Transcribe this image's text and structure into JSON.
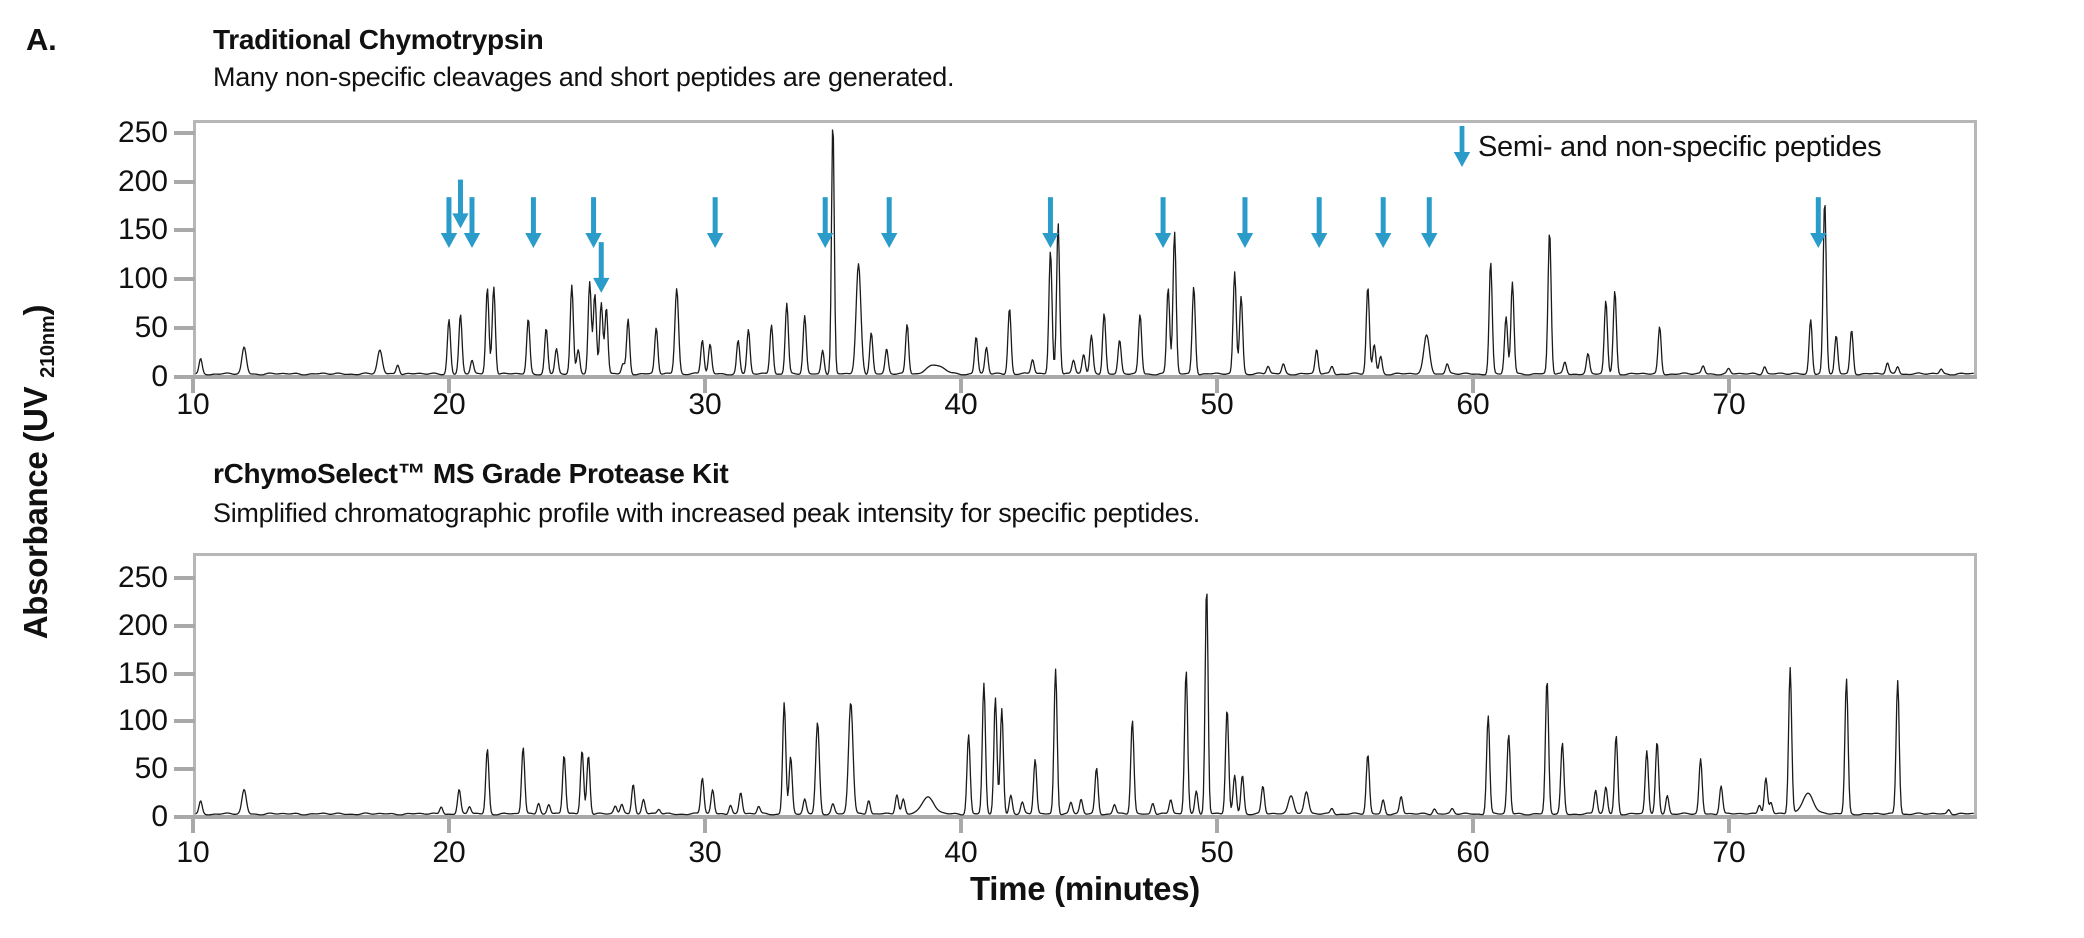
{
  "panel_label": "A.",
  "colors": {
    "arrow_blue": "#2B9CC9",
    "axis_gray": "#A9A9A9",
    "border_gray": "#B7B7B7",
    "trace_black": "#1B1B1B",
    "text_black": "#111111"
  },
  "shared_axes": {
    "x_label": "Time (minutes)",
    "y_label_main": "Absorbance (UV",
    "y_label_sub": "210nm",
    "y_label_close": ")",
    "x_ticks": [
      10,
      20,
      30,
      40,
      50,
      60,
      70
    ],
    "y_ticks": [
      250,
      200,
      150,
      100,
      50,
      0
    ],
    "x_range_minutes": [
      10,
      79.7
    ]
  },
  "chart_data": [
    {
      "type": "line",
      "id": "traditional-chymotrypsin",
      "title": "Traditional Chymotrypsin",
      "subtitle": "Many non-specific cleavages and short peptides are generated.",
      "legend": "Semi- and non-specific peptides",
      "xlabel": "Time (minutes)",
      "ylabel": "Absorbance (UV 210nm)",
      "xlim": [
        10,
        79.7
      ],
      "ylim": [
        0,
        262
      ],
      "x_ticks": [
        10,
        20,
        30,
        40,
        50,
        60,
        70
      ],
      "y_ticks": [
        250,
        200,
        150,
        100,
        50,
        0
      ],
      "grid": false,
      "peaks_time_height_width": [
        [
          10.3,
          15
        ],
        [
          12,
          27,
          0.12
        ],
        [
          17.3,
          24,
          0.13
        ],
        [
          18,
          10
        ],
        [
          20,
          56
        ],
        [
          20.45,
          60
        ],
        [
          20.9,
          14
        ],
        [
          21.5,
          88
        ],
        [
          21.75,
          90
        ],
        [
          23.1,
          56
        ],
        [
          23.8,
          47
        ],
        [
          24.2,
          25
        ],
        [
          24.8,
          90
        ],
        [
          25.05,
          25
        ],
        [
          25.5,
          95
        ],
        [
          25.7,
          82
        ],
        [
          25.95,
          72
        ],
        [
          26.15,
          68
        ],
        [
          26.8,
          10
        ],
        [
          27,
          56
        ],
        [
          28.1,
          47
        ],
        [
          28.9,
          88,
          0.1
        ],
        [
          29.9,
          35
        ],
        [
          30.2,
          30
        ],
        [
          31.3,
          34
        ],
        [
          31.7,
          45
        ],
        [
          32.6,
          51
        ],
        [
          33.2,
          72
        ],
        [
          33.9,
          59
        ],
        [
          34.6,
          25
        ],
        [
          35,
          259,
          0.075
        ],
        [
          36,
          112,
          0.13
        ],
        [
          36.5,
          43
        ],
        [
          37.1,
          25
        ],
        [
          37.9,
          51
        ],
        [
          39,
          9,
          0.45
        ],
        [
          40.6,
          38
        ],
        [
          41,
          27
        ],
        [
          41.9,
          68
        ],
        [
          42.8,
          15
        ],
        [
          43.5,
          126
        ],
        [
          43.8,
          155
        ],
        [
          44.4,
          14
        ],
        [
          44.8,
          20
        ],
        [
          45.1,
          39
        ],
        [
          45.6,
          63
        ],
        [
          46.2,
          34
        ],
        [
          47,
          61
        ],
        [
          48.1,
          88
        ],
        [
          48.35,
          145
        ],
        [
          49.1,
          90
        ],
        [
          50.7,
          104
        ],
        [
          50.95,
          80
        ],
        [
          52,
          8
        ],
        [
          52.6,
          10
        ],
        [
          53.9,
          25
        ],
        [
          54.5,
          8
        ],
        [
          55.9,
          89
        ],
        [
          56.15,
          30
        ],
        [
          56.4,
          18
        ],
        [
          58.2,
          40,
          0.16
        ],
        [
          59,
          10
        ],
        [
          60.7,
          114
        ],
        [
          61.3,
          58
        ],
        [
          61.55,
          94
        ],
        [
          63,
          146
        ],
        [
          63.6,
          12
        ],
        [
          64.5,
          20
        ],
        [
          65.2,
          75
        ],
        [
          65.55,
          85
        ],
        [
          67.3,
          48
        ],
        [
          69,
          8
        ],
        [
          70,
          5
        ],
        [
          71.4,
          8
        ],
        [
          73.2,
          56
        ],
        [
          73.75,
          177
        ],
        [
          74.2,
          39
        ],
        [
          74.8,
          45
        ],
        [
          76.2,
          11
        ],
        [
          76.6,
          8
        ],
        [
          78.3,
          5
        ]
      ],
      "annotation_arrows_time_tip_tail": [
        [
          20.0,
          130,
          182
        ],
        [
          20.45,
          150,
          200
        ],
        [
          20.9,
          130,
          182
        ],
        [
          23.3,
          130,
          182
        ],
        [
          25.65,
          130,
          182
        ],
        [
          25.95,
          84,
          136
        ],
        [
          30.4,
          130,
          182
        ],
        [
          34.7,
          130,
          182
        ],
        [
          37.2,
          130,
          182
        ],
        [
          43.5,
          130,
          182
        ],
        [
          47.9,
          130,
          182
        ],
        [
          51.1,
          130,
          182
        ],
        [
          54.0,
          130,
          182
        ],
        [
          56.5,
          130,
          182
        ],
        [
          58.3,
          130,
          182
        ],
        [
          73.5,
          130,
          182
        ]
      ]
    },
    {
      "type": "line",
      "id": "rchymoselect-ms-grade",
      "title": "rChymoSelect™ MS Grade Protease Kit",
      "subtitle": "Simplified chromatographic profile with increased peak intensity for specific peptides.",
      "legend": "",
      "xlabel": "Time (minutes)",
      "ylabel": "Absorbance (UV 210nm)",
      "xlim": [
        10,
        79.7
      ],
      "ylim": [
        0,
        274
      ],
      "x_ticks": [
        10,
        20,
        30,
        40,
        50,
        60,
        70
      ],
      "y_ticks": [
        250,
        200,
        150,
        100,
        50,
        0
      ],
      "grid": false,
      "peaks_time_height_width": [
        [
          10.3,
          13
        ],
        [
          12,
          25,
          0.12
        ],
        [
          19.7,
          8
        ],
        [
          20.4,
          25
        ],
        [
          20.8,
          8
        ],
        [
          21.5,
          68
        ],
        [
          22.9,
          70
        ],
        [
          23.5,
          12
        ],
        [
          23.9,
          10
        ],
        [
          24.5,
          62
        ],
        [
          25.2,
          67
        ],
        [
          25.45,
          62
        ],
        [
          26.5,
          8
        ],
        [
          26.75,
          10
        ],
        [
          27.2,
          32
        ],
        [
          27.6,
          15
        ],
        [
          28.2,
          5
        ],
        [
          29.9,
          38
        ],
        [
          30.3,
          25
        ],
        [
          31,
          10
        ],
        [
          31.4,
          22
        ],
        [
          32.1,
          8
        ],
        [
          33.1,
          117
        ],
        [
          33.35,
          59
        ],
        [
          33.9,
          15
        ],
        [
          34.4,
          96,
          0.1
        ],
        [
          35,
          10
        ],
        [
          35.7,
          117,
          0.12
        ],
        [
          36.4,
          15
        ],
        [
          37.5,
          20
        ],
        [
          37.75,
          15
        ],
        [
          38.7,
          17,
          0.35
        ],
        [
          40.3,
          83
        ],
        [
          40.9,
          136
        ],
        [
          41.35,
          121
        ],
        [
          41.6,
          110
        ],
        [
          41.95,
          20
        ],
        [
          42.4,
          12
        ],
        [
          42.9,
          57
        ],
        [
          43.7,
          152
        ],
        [
          44.3,
          12
        ],
        [
          44.7,
          15
        ],
        [
          45.3,
          48
        ],
        [
          46,
          10
        ],
        [
          46.7,
          98
        ],
        [
          47.5,
          12
        ],
        [
          48.2,
          15
        ],
        [
          48.8,
          150
        ],
        [
          49.2,
          25
        ],
        [
          49.6,
          238,
          0.08
        ],
        [
          50.4,
          110
        ],
        [
          50.7,
          40
        ],
        [
          51,
          41
        ],
        [
          51.8,
          29
        ],
        [
          52.9,
          20,
          0.15
        ],
        [
          53.5,
          23,
          0.12
        ],
        [
          54.5,
          6
        ],
        [
          55.9,
          62
        ],
        [
          56.5,
          15
        ],
        [
          57.2,
          18
        ],
        [
          58.5,
          6
        ],
        [
          59.2,
          5
        ],
        [
          60.6,
          103
        ],
        [
          61.4,
          83
        ],
        [
          62.9,
          140
        ],
        [
          63.5,
          74
        ],
        [
          64.8,
          25
        ],
        [
          65.2,
          28
        ],
        [
          65.6,
          82
        ],
        [
          66.8,
          66
        ],
        [
          67.2,
          75
        ],
        [
          67.6,
          20
        ],
        [
          68.9,
          57
        ],
        [
          69.7,
          30
        ],
        [
          71.2,
          10
        ],
        [
          71.45,
          38
        ],
        [
          71.65,
          12
        ],
        [
          72.4,
          153
        ],
        [
          73.1,
          22,
          0.3
        ],
        [
          74.6,
          141
        ],
        [
          76.6,
          140
        ],
        [
          78.6,
          5
        ]
      ],
      "annotation_arrows_time_tip_tail": []
    }
  ]
}
